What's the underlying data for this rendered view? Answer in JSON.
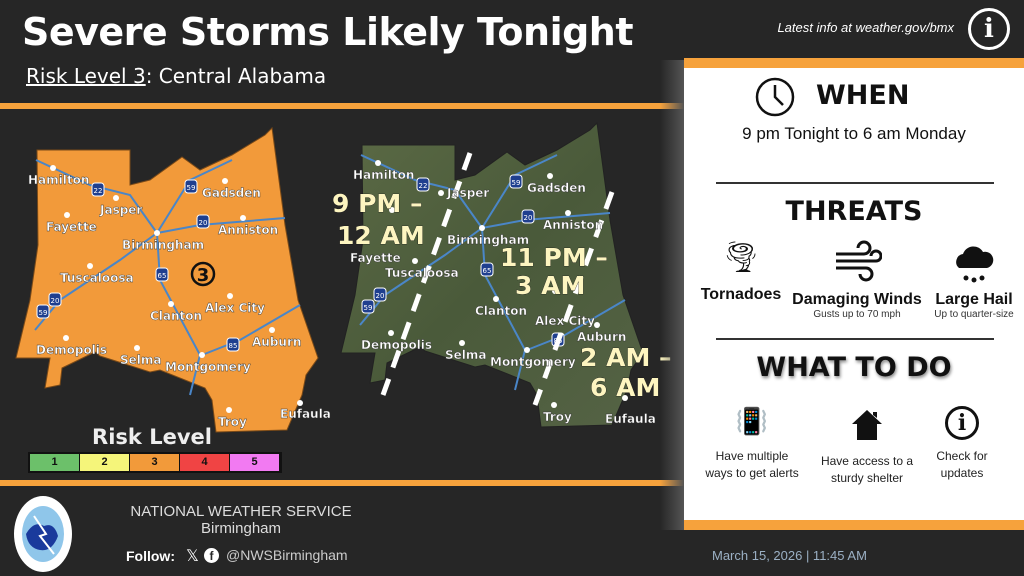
{
  "header": {
    "title": "Severe Storms Likely Tonight",
    "risk_label": "Risk Level 3",
    "risk_area": ": Central Alabama",
    "info_text": "Latest info at weather.gov/bmx",
    "info_icon": "info-icon"
  },
  "risk_map": {
    "risk_marker": "3",
    "legend_title": "Risk Level",
    "legend": [
      {
        "level": "1",
        "color": "#6cc06a"
      },
      {
        "level": "2",
        "color": "#f5f57a"
      },
      {
        "level": "3",
        "color": "#f29a3a"
      },
      {
        "level": "4",
        "color": "#f04444"
      },
      {
        "level": "5",
        "color": "#f27af2"
      }
    ],
    "fill": "#f29a3a"
  },
  "cities": [
    "Hamilton",
    "Jasper",
    "Fayette",
    "Birmingham",
    "Gadsden",
    "Anniston",
    "Tuscaloosa",
    "Clanton",
    "Alex City",
    "Demopolis",
    "Selma",
    "Montgomery",
    "Auburn",
    "Troy",
    "Eufaula"
  ],
  "interstates": [
    "22",
    "59",
    "20",
    "65",
    "20",
    "59",
    "85"
  ],
  "timing_map": {
    "windows": [
      {
        "line1": "9 PM –",
        "line2": "12 AM"
      },
      {
        "line1": "11 PM –",
        "line2": "3 AM"
      },
      {
        "line1": "2 AM –",
        "line2": "6 AM"
      }
    ]
  },
  "panel": {
    "when_title": "WHEN",
    "when_text": "9 pm Tonight to 6 am Monday",
    "threats_title": "THREATS",
    "threats": [
      {
        "label": "Tornadoes",
        "detail": "",
        "icon": "tornado-icon"
      },
      {
        "label": "Damaging Winds",
        "detail": "Gusts up to 70 mph",
        "icon": "wind-icon"
      },
      {
        "label": "Large Hail",
        "detail": "Up to quarter-size",
        "icon": "hail-icon"
      }
    ],
    "todo_title": "WHAT TO DO",
    "todo": [
      {
        "line1": "Have multiple",
        "line2": "ways to get alerts",
        "icon": "phone-alert-icon"
      },
      {
        "line1": "Have access to a",
        "line2": "sturdy shelter",
        "icon": "house-icon"
      },
      {
        "line1": "Check for",
        "line2": "updates",
        "icon": "info-icon"
      }
    ]
  },
  "footer": {
    "org": "NATIONAL WEATHER SERVICE",
    "office": "Birmingham",
    "follow": "Follow:",
    "handle": "@NWSBirmingham",
    "date": "March 15, 2026 | 11:45 AM",
    "logo_text": "NATIONAL WEATHER SERVICE"
  }
}
